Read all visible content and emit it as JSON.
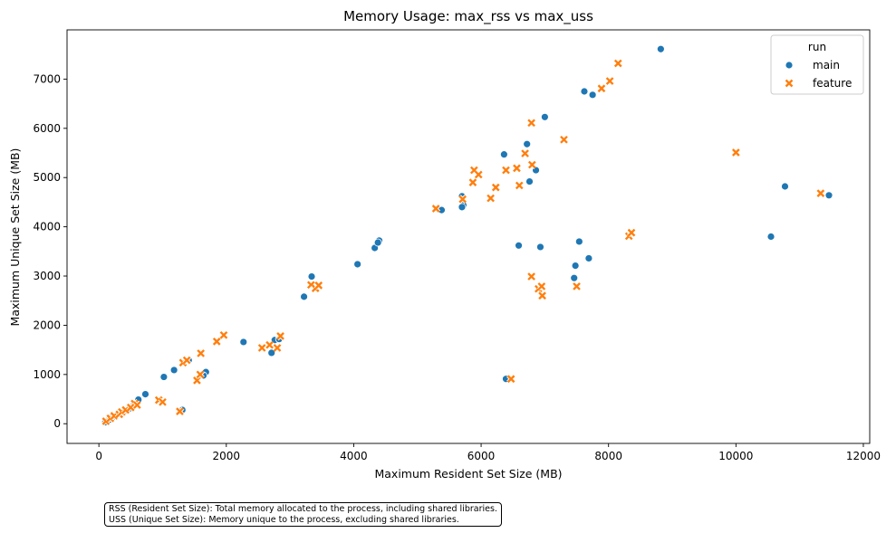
{
  "chart_data": {
    "type": "scatter",
    "title": "Memory Usage: max_rss vs max_uss",
    "xlabel": "Maximum Resident Set Size (MB)",
    "ylabel": "Maximum Unique Set Size (MB)",
    "xlim": [
      -500,
      12100
    ],
    "ylim": [
      -400,
      8000
    ],
    "xticks": [
      0,
      2000,
      4000,
      6000,
      8000,
      10000,
      12000
    ],
    "yticks": [
      0,
      1000,
      2000,
      3000,
      4000,
      5000,
      6000,
      7000
    ],
    "grid": false,
    "legend": {
      "title": "run",
      "position": "top-right"
    },
    "series": [
      {
        "name": "main",
        "marker": "circle",
        "color": "#1f77b4",
        "points": [
          [
            100,
            30
          ],
          [
            150,
            70
          ],
          [
            200,
            120
          ],
          [
            260,
            150
          ],
          [
            330,
            200
          ],
          [
            400,
            260
          ],
          [
            480,
            310
          ],
          [
            550,
            380
          ],
          [
            620,
            490
          ],
          [
            730,
            600
          ],
          [
            1020,
            950
          ],
          [
            1180,
            1090
          ],
          [
            1410,
            1290
          ],
          [
            1310,
            280
          ],
          [
            1680,
            1050
          ],
          [
            1640,
            980
          ],
          [
            2270,
            1660
          ],
          [
            2710,
            1440
          ],
          [
            2760,
            1700
          ],
          [
            2830,
            1720
          ],
          [
            3220,
            2580
          ],
          [
            3340,
            2990
          ],
          [
            4060,
            3240
          ],
          [
            4330,
            3570
          ],
          [
            4400,
            3720
          ],
          [
            4380,
            3680
          ],
          [
            5380,
            4340
          ],
          [
            5700,
            4620
          ],
          [
            5720,
            4440
          ],
          [
            5700,
            4400
          ],
          [
            6360,
            5470
          ],
          [
            6720,
            5680
          ],
          [
            6860,
            5150
          ],
          [
            6760,
            4920
          ],
          [
            7000,
            6230
          ],
          [
            7620,
            6750
          ],
          [
            7750,
            6680
          ],
          [
            8820,
            7610
          ],
          [
            6390,
            910
          ],
          [
            6590,
            3620
          ],
          [
            6930,
            3590
          ],
          [
            7540,
            3700
          ],
          [
            7480,
            3210
          ],
          [
            7690,
            3360
          ],
          [
            7460,
            2960
          ],
          [
            10550,
            3800
          ],
          [
            10770,
            4820
          ],
          [
            11460,
            4640
          ]
        ]
      },
      {
        "name": "feature",
        "marker": "x",
        "color": "#ff7f0e",
        "points": [
          [
            110,
            50
          ],
          [
            180,
            110
          ],
          [
            240,
            160
          ],
          [
            320,
            190
          ],
          [
            360,
            240
          ],
          [
            420,
            280
          ],
          [
            500,
            330
          ],
          [
            560,
            410
          ],
          [
            600,
            380
          ],
          [
            940,
            480
          ],
          [
            1000,
            440
          ],
          [
            1320,
            1240
          ],
          [
            1380,
            1290
          ],
          [
            1270,
            250
          ],
          [
            1540,
            880
          ],
          [
            1590,
            1000
          ],
          [
            1600,
            1430
          ],
          [
            1850,
            1670
          ],
          [
            1960,
            1800
          ],
          [
            2560,
            1540
          ],
          [
            2680,
            1600
          ],
          [
            2800,
            1540
          ],
          [
            2850,
            1780
          ],
          [
            3330,
            2820
          ],
          [
            3400,
            2750
          ],
          [
            3450,
            2810
          ],
          [
            5290,
            4370
          ],
          [
            5710,
            4560
          ],
          [
            5870,
            4900
          ],
          [
            5890,
            5150
          ],
          [
            5960,
            5060
          ],
          [
            6150,
            4580
          ],
          [
            6230,
            4800
          ],
          [
            6390,
            5150
          ],
          [
            6560,
            5190
          ],
          [
            6600,
            4840
          ],
          [
            6690,
            5490
          ],
          [
            6800,
            5260
          ],
          [
            6790,
            6110
          ],
          [
            7300,
            5770
          ],
          [
            7890,
            6810
          ],
          [
            8020,
            6960
          ],
          [
            8150,
            7320
          ],
          [
            6470,
            910
          ],
          [
            6790,
            2990
          ],
          [
            6900,
            2740
          ],
          [
            6950,
            2790
          ],
          [
            6960,
            2600
          ],
          [
            7500,
            2790
          ],
          [
            8320,
            3810
          ],
          [
            8360,
            3880
          ],
          [
            10000,
            5510
          ],
          [
            11330,
            4680
          ]
        ]
      }
    ]
  },
  "note": {
    "line1": "RSS (Resident Set Size): Total memory allocated to the process, including shared libraries.",
    "line2": "USS (Unique Set Size): Memory unique to the process, excluding shared libraries."
  }
}
